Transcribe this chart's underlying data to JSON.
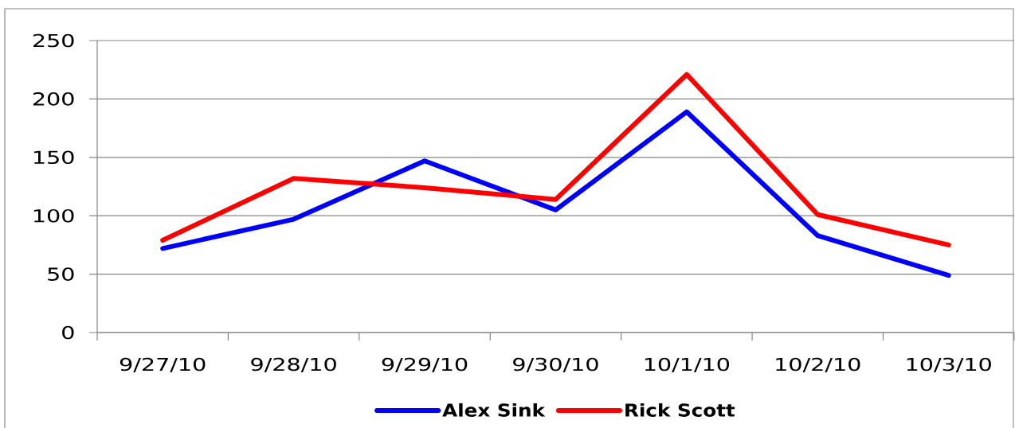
{
  "chart_data": {
    "type": "line",
    "categories": [
      "9/27/10",
      "9/28/10",
      "9/29/10",
      "9/30/10",
      "10/1/10",
      "10/2/10",
      "10/3/10"
    ],
    "series": [
      {
        "name": "Alex Sink",
        "color": "#0000ff",
        "values": [
          72,
          97,
          147,
          105,
          189,
          83,
          49
        ]
      },
      {
        "name": "Rick Scott",
        "color": "#ff0000",
        "values": [
          79,
          132,
          124,
          114,
          221,
          101,
          75
        ]
      }
    ],
    "ylim": [
      0,
      250
    ],
    "yticks": [
      0,
      50,
      100,
      150,
      200,
      250
    ],
    "grid": "y",
    "legend": "bottom",
    "line_style": "solid"
  }
}
